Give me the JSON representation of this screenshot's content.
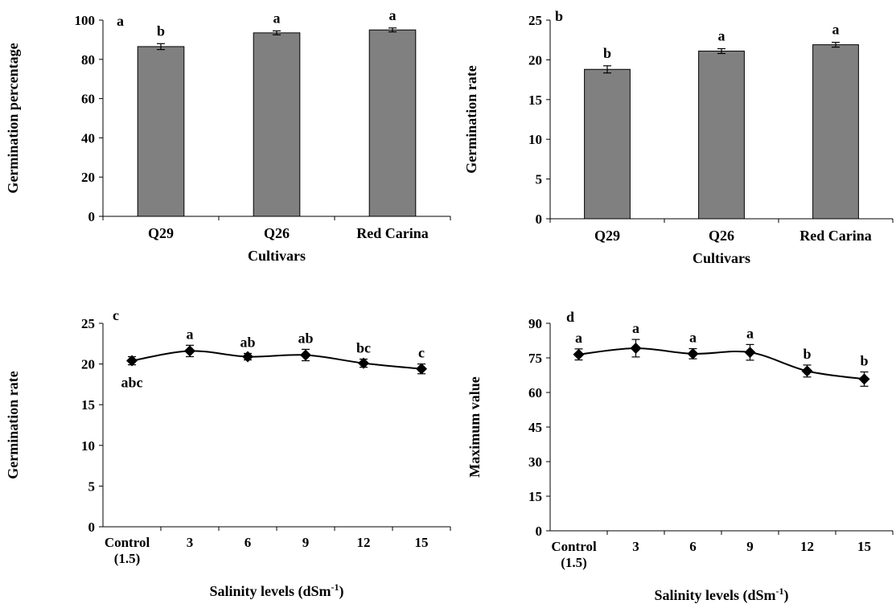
{
  "chart_data": [
    {
      "type": "bar",
      "panel": "a",
      "categories": [
        "Q29",
        "Q26",
        "Red Carina"
      ],
      "values": [
        86.5,
        93.5,
        95
      ],
      "errors": [
        1.5,
        1.0,
        1.0
      ],
      "letters": [
        "b",
        "a",
        "a"
      ],
      "xlabel": "Cultivars",
      "ylabel": "Germination percentage",
      "ylim": [
        0,
        100
      ],
      "yticks": [
        "0",
        "20",
        "40",
        "60",
        "80",
        "100"
      ],
      "bar_color": "#808080"
    },
    {
      "type": "bar",
      "panel": "b",
      "categories": [
        "Q29",
        "Q26",
        "Red Carina"
      ],
      "values": [
        18.8,
        21.1,
        21.9
      ],
      "errors": [
        0.45,
        0.3,
        0.3
      ],
      "letters": [
        "b",
        "a",
        "a"
      ],
      "xlabel": "Cultivars",
      "ylabel": "Germination rate",
      "ylim": [
        0,
        25
      ],
      "yticks": [
        "0",
        "5",
        "10",
        "15",
        "20",
        "25"
      ],
      "bar_color": "#808080"
    },
    {
      "type": "line",
      "panel": "c",
      "categories": [
        "Control\n(1.5)",
        "3",
        "6",
        "9",
        "12",
        "15"
      ],
      "values": [
        20.4,
        21.6,
        20.9,
        21.1,
        20.1,
        19.4
      ],
      "errors": [
        0.5,
        0.7,
        0.4,
        0.7,
        0.5,
        0.6
      ],
      "letters": [
        "abc",
        "a",
        "ab",
        "ab",
        "bc",
        "c"
      ],
      "xlabel": "Salinity levels (dSm-1)",
      "ylabel": "Germination rate",
      "ylim": [
        0,
        25
      ],
      "yticks": [
        "0",
        "5",
        "10",
        "15",
        "20",
        "25"
      ]
    },
    {
      "type": "line",
      "panel": "d",
      "categories": [
        "Control\n(1.5)",
        "3",
        "6",
        "9",
        "12",
        "15"
      ],
      "values": [
        76.5,
        79.2,
        76.8,
        77.4,
        69.3,
        65.8
      ],
      "errors": [
        2.4,
        3.8,
        2.2,
        3.4,
        2.6,
        3.1
      ],
      "letters": [
        "a",
        "a",
        "a",
        "a",
        "b",
        "b"
      ],
      "xlabel": "Salinity levels (dSm-1)",
      "ylabel": "Maximum value",
      "ylim": [
        0,
        90
      ],
      "yticks": [
        "0",
        "15",
        "30",
        "45",
        "60",
        "75",
        "90"
      ]
    }
  ]
}
